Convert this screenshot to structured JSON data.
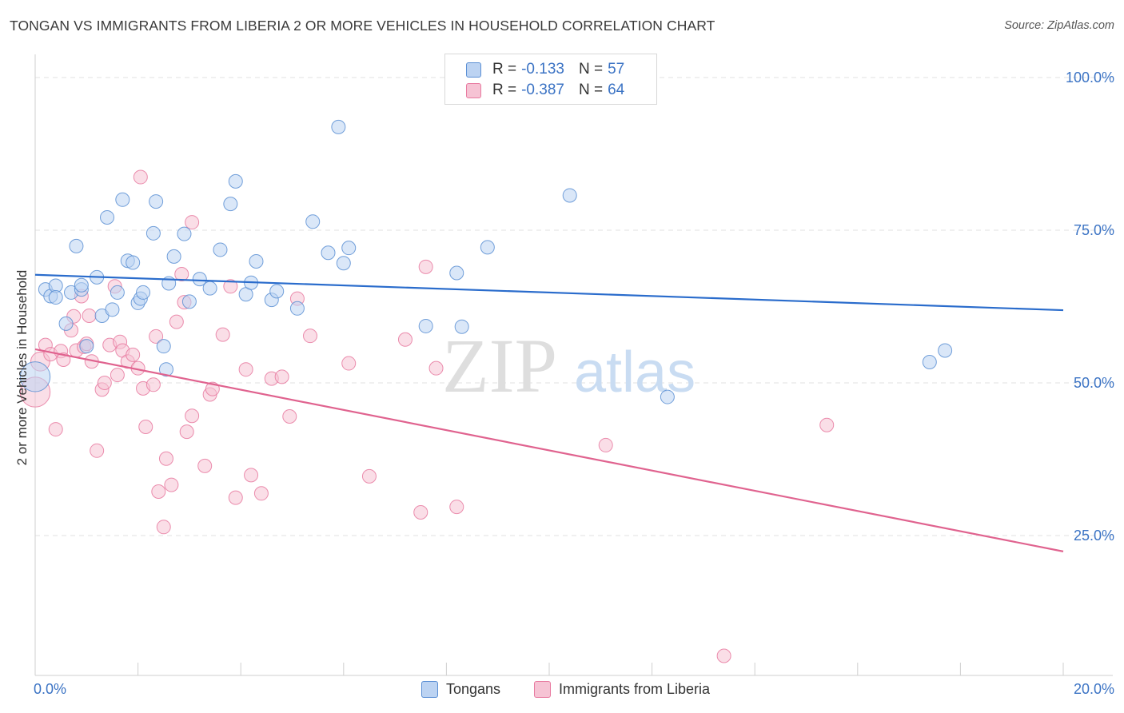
{
  "title": "TONGAN VS IMMIGRANTS FROM LIBERIA 2 OR MORE VEHICLES IN HOUSEHOLD CORRELATION CHART",
  "source": "Source: ZipAtlas.com",
  "watermark": {
    "zip": "ZIP",
    "atlas": "atlas"
  },
  "colors": {
    "blue": "#5b8fd4",
    "blue_fill": "#bcd3f2",
    "pink": "#e87aa0",
    "pink_fill": "#f6c3d4",
    "blue_line": "#2a6ccc",
    "pink_line": "#e0638f",
    "tick_text": "#3b73c4"
  },
  "legend_top": {
    "rows": [
      {
        "r_label": "R =",
        "r_value": "-0.133",
        "n_label": "N =",
        "n_value": "57"
      },
      {
        "r_label": "R =",
        "r_value": "-0.387",
        "n_label": "N =",
        "n_value": "64"
      }
    ]
  },
  "legend_bottom": {
    "items": [
      "Tongans",
      "Immigrants from Liberia"
    ]
  },
  "chart_data": {
    "type": "scatter",
    "ylabel": "2 or more Vehicles in Household",
    "xlabel": "",
    "xlim": [
      0,
      20
    ],
    "ylim": [
      0,
      100
    ],
    "x_ticks": [
      "0.0%",
      "20.0%"
    ],
    "y_ticks": [
      "100.0%",
      "75.0%",
      "50.0%",
      "25.0%"
    ],
    "y_tick_values": [
      100,
      75,
      50,
      25
    ],
    "grid": "horizontal-dashed",
    "legend_position": "top-center",
    "series": [
      {
        "name": "Tongans",
        "trend": {
          "x": [
            0,
            20
          ],
          "y": [
            67.7,
            61.9
          ]
        },
        "points": [
          [
            0.0,
            51.0,
            2.2
          ],
          [
            0.2,
            65.3,
            1.0
          ],
          [
            0.3,
            64.2,
            1.0
          ],
          [
            0.4,
            65.9,
            1.0
          ],
          [
            0.4,
            64.0,
            1.0
          ],
          [
            0.6,
            59.7,
            1.0
          ],
          [
            0.7,
            64.8,
            1.0
          ],
          [
            0.8,
            72.4,
            1.0
          ],
          [
            0.9,
            65.3,
            1.0
          ],
          [
            0.9,
            66.0,
            1.0
          ],
          [
            1.0,
            56.0,
            1.0
          ],
          [
            1.2,
            67.3,
            1.0
          ],
          [
            1.3,
            61.0,
            1.0
          ],
          [
            1.4,
            77.1,
            1.0
          ],
          [
            1.5,
            62.0,
            1.0
          ],
          [
            1.6,
            64.8,
            1.0
          ],
          [
            1.7,
            80.0,
            1.0
          ],
          [
            1.8,
            70.0,
            1.0
          ],
          [
            1.9,
            69.7,
            1.0
          ],
          [
            2.0,
            63.1,
            1.0
          ],
          [
            2.05,
            63.8,
            1.0
          ],
          [
            2.1,
            64.8,
            1.0
          ],
          [
            2.3,
            74.5,
            1.0
          ],
          [
            2.35,
            79.7,
            1.0
          ],
          [
            2.5,
            56.0,
            1.0
          ],
          [
            2.55,
            52.2,
            1.0
          ],
          [
            2.6,
            66.3,
            1.0
          ],
          [
            2.7,
            70.7,
            1.0
          ],
          [
            2.9,
            74.4,
            1.0
          ],
          [
            3.0,
            63.3,
            1.0
          ],
          [
            3.2,
            67.0,
            1.0
          ],
          [
            3.4,
            65.5,
            1.0
          ],
          [
            3.6,
            71.8,
            1.0
          ],
          [
            3.8,
            79.3,
            1.0
          ],
          [
            3.9,
            83.0,
            1.0
          ],
          [
            4.1,
            64.5,
            1.0
          ],
          [
            4.2,
            66.4,
            1.0
          ],
          [
            4.3,
            69.9,
            1.0
          ],
          [
            4.6,
            63.6,
            1.0
          ],
          [
            4.7,
            65.0,
            1.0
          ],
          [
            5.1,
            62.2,
            1.0
          ],
          [
            5.4,
            76.4,
            1.0
          ],
          [
            5.7,
            71.3,
            1.0
          ],
          [
            5.9,
            91.9,
            1.0
          ],
          [
            6.0,
            69.6,
            1.0
          ],
          [
            6.1,
            72.1,
            1.0
          ],
          [
            7.6,
            59.3,
            1.0
          ],
          [
            8.2,
            68.0,
            1.0
          ],
          [
            8.3,
            59.2,
            1.0
          ],
          [
            8.8,
            72.2,
            1.0
          ],
          [
            10.4,
            80.7,
            1.0
          ],
          [
            12.3,
            47.7,
            1.0
          ],
          [
            17.4,
            53.4,
            1.0
          ],
          [
            17.7,
            55.3,
            1.0
          ]
        ]
      },
      {
        "name": "Immigrants from Liberia",
        "trend": {
          "x": [
            0,
            20
          ],
          "y": [
            55.5,
            22.4
          ]
        },
        "points": [
          [
            0.0,
            48.5,
            2.2
          ],
          [
            0.1,
            53.5,
            1.4
          ],
          [
            0.2,
            56.2,
            1.0
          ],
          [
            0.3,
            54.7,
            1.0
          ],
          [
            0.4,
            42.4,
            1.0
          ],
          [
            0.5,
            55.2,
            1.0
          ],
          [
            0.55,
            53.8,
            1.0
          ],
          [
            0.7,
            58.6,
            1.0
          ],
          [
            0.75,
            60.9,
            1.0
          ],
          [
            0.8,
            55.3,
            1.0
          ],
          [
            0.9,
            64.2,
            1.0
          ],
          [
            0.95,
            55.9,
            1.0
          ],
          [
            1.0,
            56.4,
            1.0
          ],
          [
            1.05,
            61.0,
            1.0
          ],
          [
            1.1,
            53.5,
            1.0
          ],
          [
            1.2,
            38.9,
            1.0
          ],
          [
            1.3,
            48.9,
            1.0
          ],
          [
            1.35,
            50.0,
            1.0
          ],
          [
            1.45,
            56.2,
            1.0
          ],
          [
            1.55,
            65.8,
            1.0
          ],
          [
            1.6,
            51.3,
            1.0
          ],
          [
            1.65,
            56.7,
            1.0
          ],
          [
            1.7,
            55.3,
            1.0
          ],
          [
            1.8,
            53.5,
            1.0
          ],
          [
            1.9,
            54.6,
            1.0
          ],
          [
            2.0,
            52.4,
            1.0
          ],
          [
            2.05,
            83.7,
            1.0
          ],
          [
            2.1,
            49.1,
            1.0
          ],
          [
            2.15,
            42.8,
            1.0
          ],
          [
            2.3,
            49.7,
            1.0
          ],
          [
            2.35,
            57.6,
            1.0
          ],
          [
            2.4,
            32.2,
            1.0
          ],
          [
            2.5,
            26.4,
            1.0
          ],
          [
            2.55,
            37.6,
            1.0
          ],
          [
            2.65,
            33.3,
            1.0
          ],
          [
            2.75,
            60.0,
            1.0
          ],
          [
            2.85,
            67.8,
            1.0
          ],
          [
            2.9,
            63.2,
            1.0
          ],
          [
            2.95,
            42.0,
            1.0
          ],
          [
            3.05,
            44.6,
            1.0
          ],
          [
            3.05,
            76.3,
            1.0
          ],
          [
            3.3,
            36.4,
            1.0
          ],
          [
            3.4,
            48.1,
            1.0
          ],
          [
            3.45,
            49.0,
            1.0
          ],
          [
            3.65,
            57.9,
            1.0
          ],
          [
            3.8,
            65.8,
            1.0
          ],
          [
            3.9,
            31.2,
            1.0
          ],
          [
            4.1,
            52.2,
            1.0
          ],
          [
            4.2,
            34.9,
            1.0
          ],
          [
            4.4,
            31.9,
            1.0
          ],
          [
            4.6,
            50.7,
            1.0
          ],
          [
            4.8,
            51.0,
            1.0
          ],
          [
            4.95,
            44.5,
            1.0
          ],
          [
            5.1,
            63.8,
            1.0
          ],
          [
            5.35,
            57.7,
            1.0
          ],
          [
            6.1,
            53.2,
            1.0
          ],
          [
            6.5,
            34.7,
            1.0
          ],
          [
            7.2,
            57.1,
            1.0
          ],
          [
            7.5,
            28.8,
            1.0
          ],
          [
            7.6,
            69.0,
            1.0
          ],
          [
            7.8,
            52.4,
            1.0
          ],
          [
            8.2,
            29.7,
            1.0
          ],
          [
            11.1,
            39.8,
            1.0
          ],
          [
            13.4,
            5.3,
            1.0
          ],
          [
            15.4,
            43.1,
            1.0
          ]
        ]
      }
    ]
  }
}
